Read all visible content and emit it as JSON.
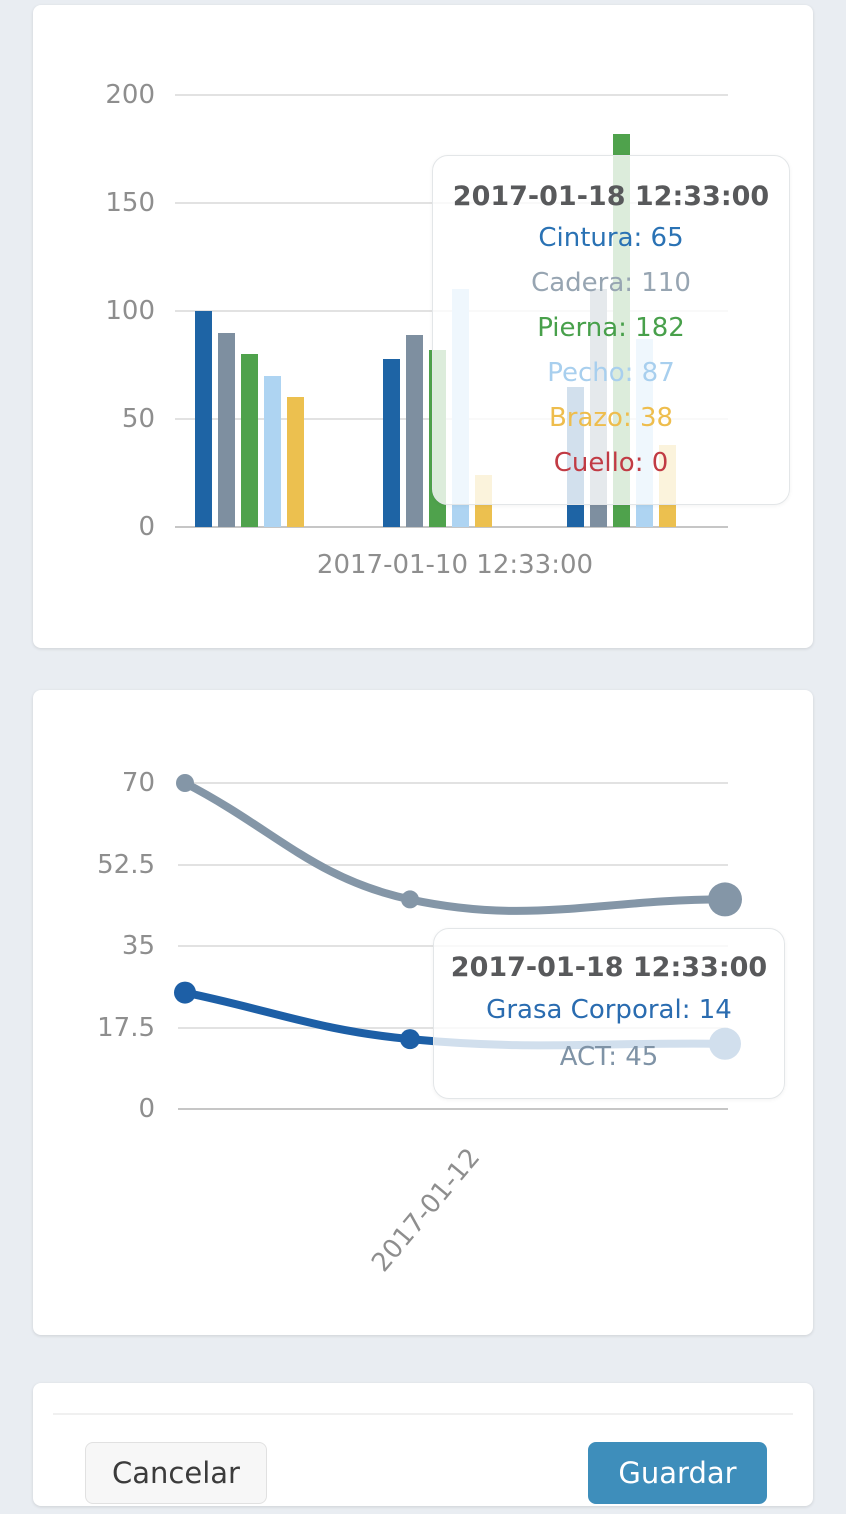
{
  "page": {
    "background": "#e9edf2",
    "accent_color": "#3d8eb9"
  },
  "chart_data": [
    {
      "type": "bar",
      "title": "",
      "y_ticks": [
        "200",
        "150",
        "100",
        "50",
        "0"
      ],
      "ylim": [
        0,
        200
      ],
      "grid": true,
      "legend_position": "none",
      "x_label_visible": "2017-01-10 12:33:00",
      "categories_visible": [
        "2017-01-10 12:33:00"
      ],
      "hovered_category": "2017-01-18 12:33:00",
      "series": [
        {
          "name": "Cintura",
          "color": "#1e64a5",
          "values": [
            100,
            78,
            65
          ]
        },
        {
          "name": "Cadera",
          "color": "#7e8fa0",
          "values": [
            90,
            89,
            110
          ]
        },
        {
          "name": "Pierna",
          "color": "#4fa24c",
          "values": [
            80,
            82,
            182
          ]
        },
        {
          "name": "Pecho",
          "color": "#aed4f2",
          "values": [
            70,
            110,
            87
          ]
        },
        {
          "name": "Brazo",
          "color": "#ecc04f",
          "values": [
            60,
            24,
            38
          ]
        },
        {
          "name": "Cuello",
          "color": "#c13b44",
          "values": [
            0,
            0,
            0
          ]
        }
      ],
      "tooltip": {
        "title": "2017-01-18 12:33:00",
        "rows": [
          {
            "label": "Cintura",
            "value": "65",
            "color": "#2a72b4"
          },
          {
            "label": "Cadera",
            "value": "110",
            "color": "#97a5b2"
          },
          {
            "label": "Pierna",
            "value": "182",
            "color": "#48a04b"
          },
          {
            "label": "Pecho",
            "value": "87",
            "color": "#a8cfee"
          },
          {
            "label": "Brazo",
            "value": "38",
            "color": "#eebd4d"
          },
          {
            "label": "Cuello",
            "value": "0",
            "color": "#c13b44"
          }
        ]
      }
    },
    {
      "type": "line",
      "title": "",
      "y_ticks": [
        "70",
        "52.5",
        "35",
        "17.5",
        "0"
      ],
      "ylim": [
        0,
        70
      ],
      "grid": true,
      "legend_position": "none",
      "x_label_visible": "2017-01-12",
      "hovered_category": "2017-01-18 12:33:00",
      "series": [
        {
          "name": "ACT",
          "color": "#8496a7",
          "values": [
            70,
            45,
            45
          ]
        },
        {
          "name": "Grasa Corporal",
          "color": "#1d5fa6",
          "values": [
            25,
            15,
            14
          ]
        }
      ],
      "tooltip": {
        "title": "2017-01-18 12:33:00",
        "rows": [
          {
            "label": "Grasa Corporal",
            "value": "14",
            "color": "#2a6cb0"
          },
          {
            "label": "ACT",
            "value": "45",
            "color": "#7f93a6"
          }
        ]
      }
    }
  ],
  "footer": {
    "cancel_label": "Cancelar",
    "save_label": "Guardar"
  }
}
